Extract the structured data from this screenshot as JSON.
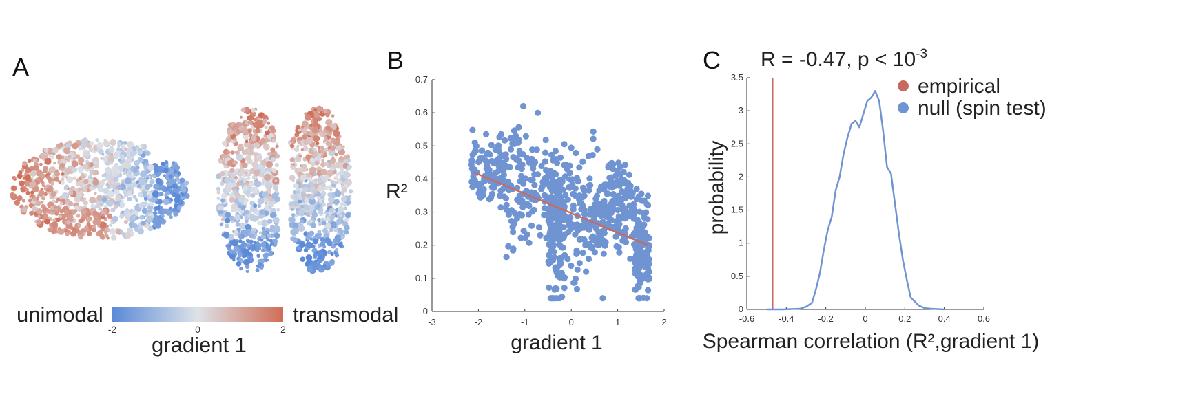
{
  "figure": {
    "panel_a_letter": "A",
    "panel_b_letter": "B",
    "panel_c_letter": "C"
  },
  "colors": {
    "blue": "#6f94d1",
    "red": "#c96a60",
    "cmap_low": "#5b8ad8",
    "cmap_mid": "#dde2e8",
    "cmap_high": "#d06d56"
  },
  "chart_data": [
    {
      "panel": "A",
      "type": "scatter",
      "description_views": [
        "lateral",
        "dorsal"
      ],
      "colorbar": {
        "left_label": "unimodal",
        "right_label": "transmodal",
        "title": "gradient 1",
        "range": [
          -2,
          2
        ],
        "ticks": [
          "-2",
          "0",
          "2"
        ]
      }
    },
    {
      "panel": "B",
      "type": "scatter",
      "xlabel": "gradient 1",
      "ylabel": "R²",
      "xlim": [
        -3,
        2
      ],
      "ylim": [
        0,
        0.7
      ],
      "xticks": [
        "-3",
        "-2",
        "-1",
        "0",
        "1",
        "2"
      ],
      "yticks": [
        "0",
        "0.1",
        "0.2",
        "0.3",
        "0.4",
        "0.5",
        "0.6",
        "0.7"
      ],
      "fit_line": {
        "x": [
          -2.1,
          1.65
        ],
        "y": [
          0.42,
          0.2
        ]
      },
      "point_clusters": [
        {
          "x_range": [
            -2.15,
            -1.4
          ],
          "y_mean": 0.43,
          "y_sd": 0.05,
          "n": 110
        },
        {
          "x_range": [
            -1.4,
            -0.5
          ],
          "y_mean": 0.38,
          "y_sd": 0.09,
          "n": 120
        },
        {
          "x_range": [
            -0.5,
            -0.15
          ],
          "y_mean": 0.26,
          "y_sd": 0.11,
          "n": 160
        },
        {
          "x_range": [
            -0.15,
            0.7
          ],
          "y_mean": 0.29,
          "y_sd": 0.09,
          "n": 160
        },
        {
          "x_range": [
            0.7,
            1.35
          ],
          "y_mean": 0.33,
          "y_sd": 0.07,
          "n": 150
        },
        {
          "x_range": [
            1.35,
            1.68
          ],
          "y_mean": 0.2,
          "y_sd": 0.09,
          "n": 130
        }
      ]
    },
    {
      "panel": "C",
      "type": "line",
      "stat_text": "R = -0.47, p < 10",
      "stat_exp": "-3",
      "xlabel": "Spearman correlation (R²,gradient 1)",
      "ylabel": "probability",
      "xlim": [
        -0.6,
        0.6
      ],
      "ylim": [
        0,
        3.5
      ],
      "xticks": [
        "-0.6",
        "-0.4",
        "-0.2",
        "0",
        "0.2",
        "0.4",
        "0.6"
      ],
      "yticks": [
        "0",
        "0.5",
        "1",
        "1.5",
        "2",
        "2.5",
        "3",
        "3.5"
      ],
      "empirical": -0.47,
      "legend": [
        {
          "label": "empirical",
          "color": "#c96a60"
        },
        {
          "label": "null (spin test)",
          "color": "#6f94d1"
        }
      ],
      "series": [
        {
          "name": "null (spin test)",
          "x": [
            -0.5,
            -0.42,
            -0.33,
            -0.3,
            -0.27,
            -0.25,
            -0.23,
            -0.21,
            -0.19,
            -0.17,
            -0.15,
            -0.13,
            -0.11,
            -0.09,
            -0.07,
            -0.05,
            -0.03,
            -0.01,
            0.01,
            0.03,
            0.05,
            0.07,
            0.09,
            0.11,
            0.13,
            0.15,
            0.17,
            0.19,
            0.21,
            0.23,
            0.25,
            0.27,
            0.3,
            0.33,
            0.4
          ],
          "y": [
            0,
            0,
            0.01,
            0.04,
            0.1,
            0.3,
            0.55,
            0.9,
            1.2,
            1.4,
            1.8,
            2.0,
            2.35,
            2.6,
            2.8,
            2.85,
            2.75,
            2.95,
            3.15,
            3.2,
            3.3,
            3.15,
            2.7,
            2.15,
            2.05,
            1.6,
            1.15,
            0.75,
            0.45,
            0.18,
            0.12,
            0.06,
            0.02,
            0.01,
            0
          ]
        }
      ]
    }
  ]
}
